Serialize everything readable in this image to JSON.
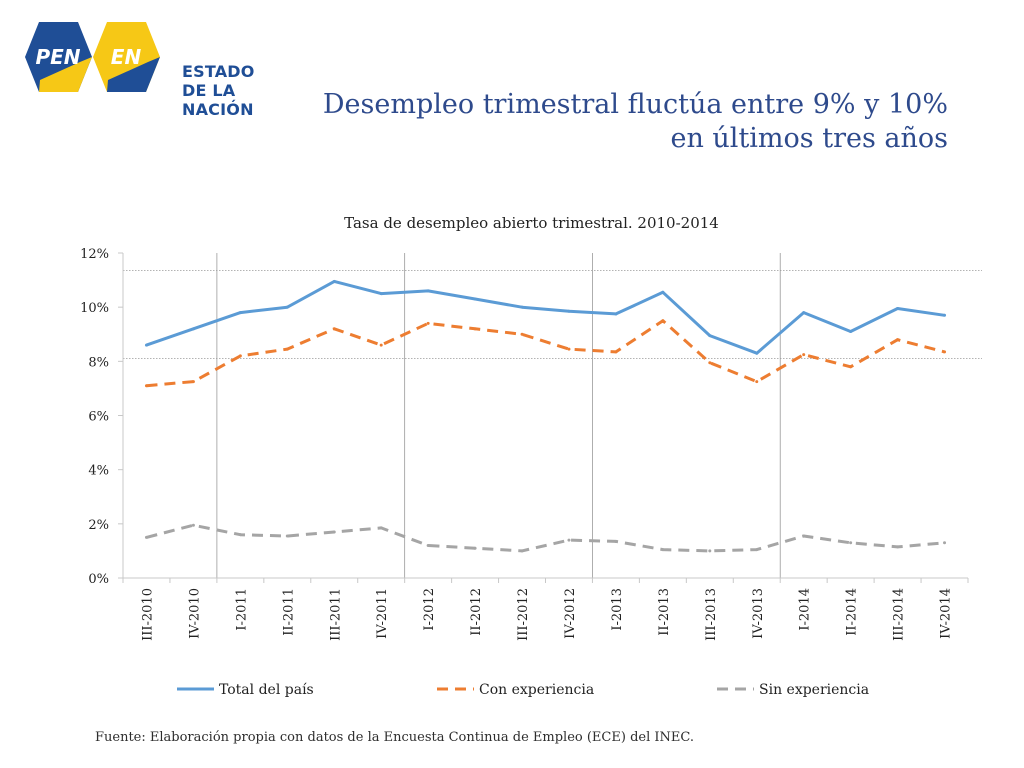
{
  "header": {
    "logo_pen": "PEN",
    "logo_en": "EN",
    "logo_line1": "ESTADO",
    "logo_line2": "DE LA NACIÓN",
    "title_line1": "Desempleo trimestral fluctúa entre 9% y 10%",
    "title_line2": "en últimos tres años"
  },
  "footer": {
    "source": "Fuente: Elaboración propia con datos de la Encuesta Continua de Empleo (ECE) del INEC."
  },
  "colors": {
    "brand_blue": "#1f4e96",
    "brand_yellow": "#f6c816",
    "title_blue": "#2e4a8c"
  },
  "chart_data": {
    "type": "line",
    "title": "Tasa de desempleo abierto trimestral. 2010-2014",
    "categories": [
      "III-2010",
      "IV-2010",
      "I-2011",
      "II-2011",
      "III-2011",
      "IV-2011",
      "I-2012",
      "II-2012",
      "III-2012",
      "IV-2012",
      "I-2013",
      "II-2013",
      "III-2013",
      "IV-2013",
      "I-2014",
      "II-2014",
      "III-2014",
      "IV-2014"
    ],
    "series": [
      {
        "name": "Total del país",
        "color": "#5b9bd5",
        "style": "solid",
        "values": [
          8.6,
          9.2,
          9.8,
          10.0,
          10.95,
          10.5,
          10.6,
          10.3,
          10.0,
          9.85,
          9.75,
          10.55,
          8.95,
          8.3,
          9.8,
          9.1,
          9.95,
          9.7
        ]
      },
      {
        "name": "Con experiencia",
        "color": "#ed7d31",
        "style": "dashed",
        "values": [
          7.1,
          7.25,
          8.2,
          8.45,
          9.2,
          8.6,
          9.4,
          9.2,
          9.0,
          8.45,
          8.35,
          9.5,
          7.95,
          7.25,
          8.25,
          7.8,
          8.8,
          8.35
        ]
      },
      {
        "name": "Sin experiencia",
        "color": "#a5a5a5",
        "style": "dashed",
        "values": [
          1.5,
          1.95,
          1.6,
          1.55,
          1.7,
          1.85,
          1.2,
          1.1,
          1.0,
          1.4,
          1.35,
          1.05,
          1.0,
          1.05,
          1.55,
          1.3,
          1.15,
          1.3
        ]
      }
    ],
    "ylim": [
      0,
      12
    ],
    "yticks": [
      0,
      2,
      4,
      6,
      8,
      10,
      12
    ],
    "ytick_labels": [
      "0%",
      "2%",
      "4%",
      "6%",
      "8%",
      "10%",
      "12%"
    ],
    "reference_lines": [
      8.1,
      11.35
    ],
    "year_separators_after": [
      "IV-2010",
      "IV-2011",
      "IV-2012",
      "IV-2013"
    ],
    "legend_position": "bottom",
    "grid": false
  }
}
